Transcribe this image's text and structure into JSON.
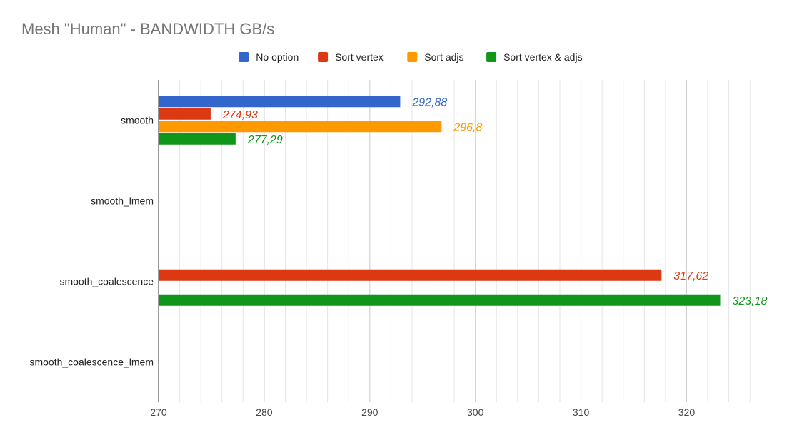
{
  "chart_data": {
    "type": "bar",
    "orientation": "horizontal",
    "title": "Mesh \"Human\" - BANDWIDTH GB/s",
    "xlabel": "",
    "ylabel": "",
    "categories": [
      "smooth",
      "smooth_lmem",
      "smooth_coalescence",
      "smooth_coalescence_lmem"
    ],
    "series": [
      {
        "name": "No option",
        "color": "#3366cc",
        "values": [
          292.88,
          null,
          null,
          null
        ],
        "labels": [
          "292,88",
          "",
          "",
          ""
        ]
      },
      {
        "name": "Sort vertex",
        "color": "#dc3912",
        "values": [
          274.93,
          null,
          317.62,
          null
        ],
        "labels": [
          "274,93",
          "",
          "317,62",
          ""
        ]
      },
      {
        "name": "Sort adjs",
        "color": "#ff9900",
        "values": [
          296.8,
          null,
          null,
          null
        ],
        "labels": [
          "296,8",
          "",
          "",
          ""
        ]
      },
      {
        "name": "Sort vertex & adjs",
        "color": "#109618",
        "values": [
          277.29,
          null,
          323.18,
          null
        ],
        "labels": [
          "277,29",
          "",
          "323,18",
          ""
        ]
      }
    ],
    "xlim": [
      270,
      327
    ],
    "xticks": [
      "270",
      "280",
      "290",
      "300",
      "310",
      "320"
    ],
    "xtick_values": [
      270,
      280,
      290,
      300,
      310,
      320
    ],
    "minor_grid_step": 2,
    "grid": true,
    "legend_position": "top"
  }
}
